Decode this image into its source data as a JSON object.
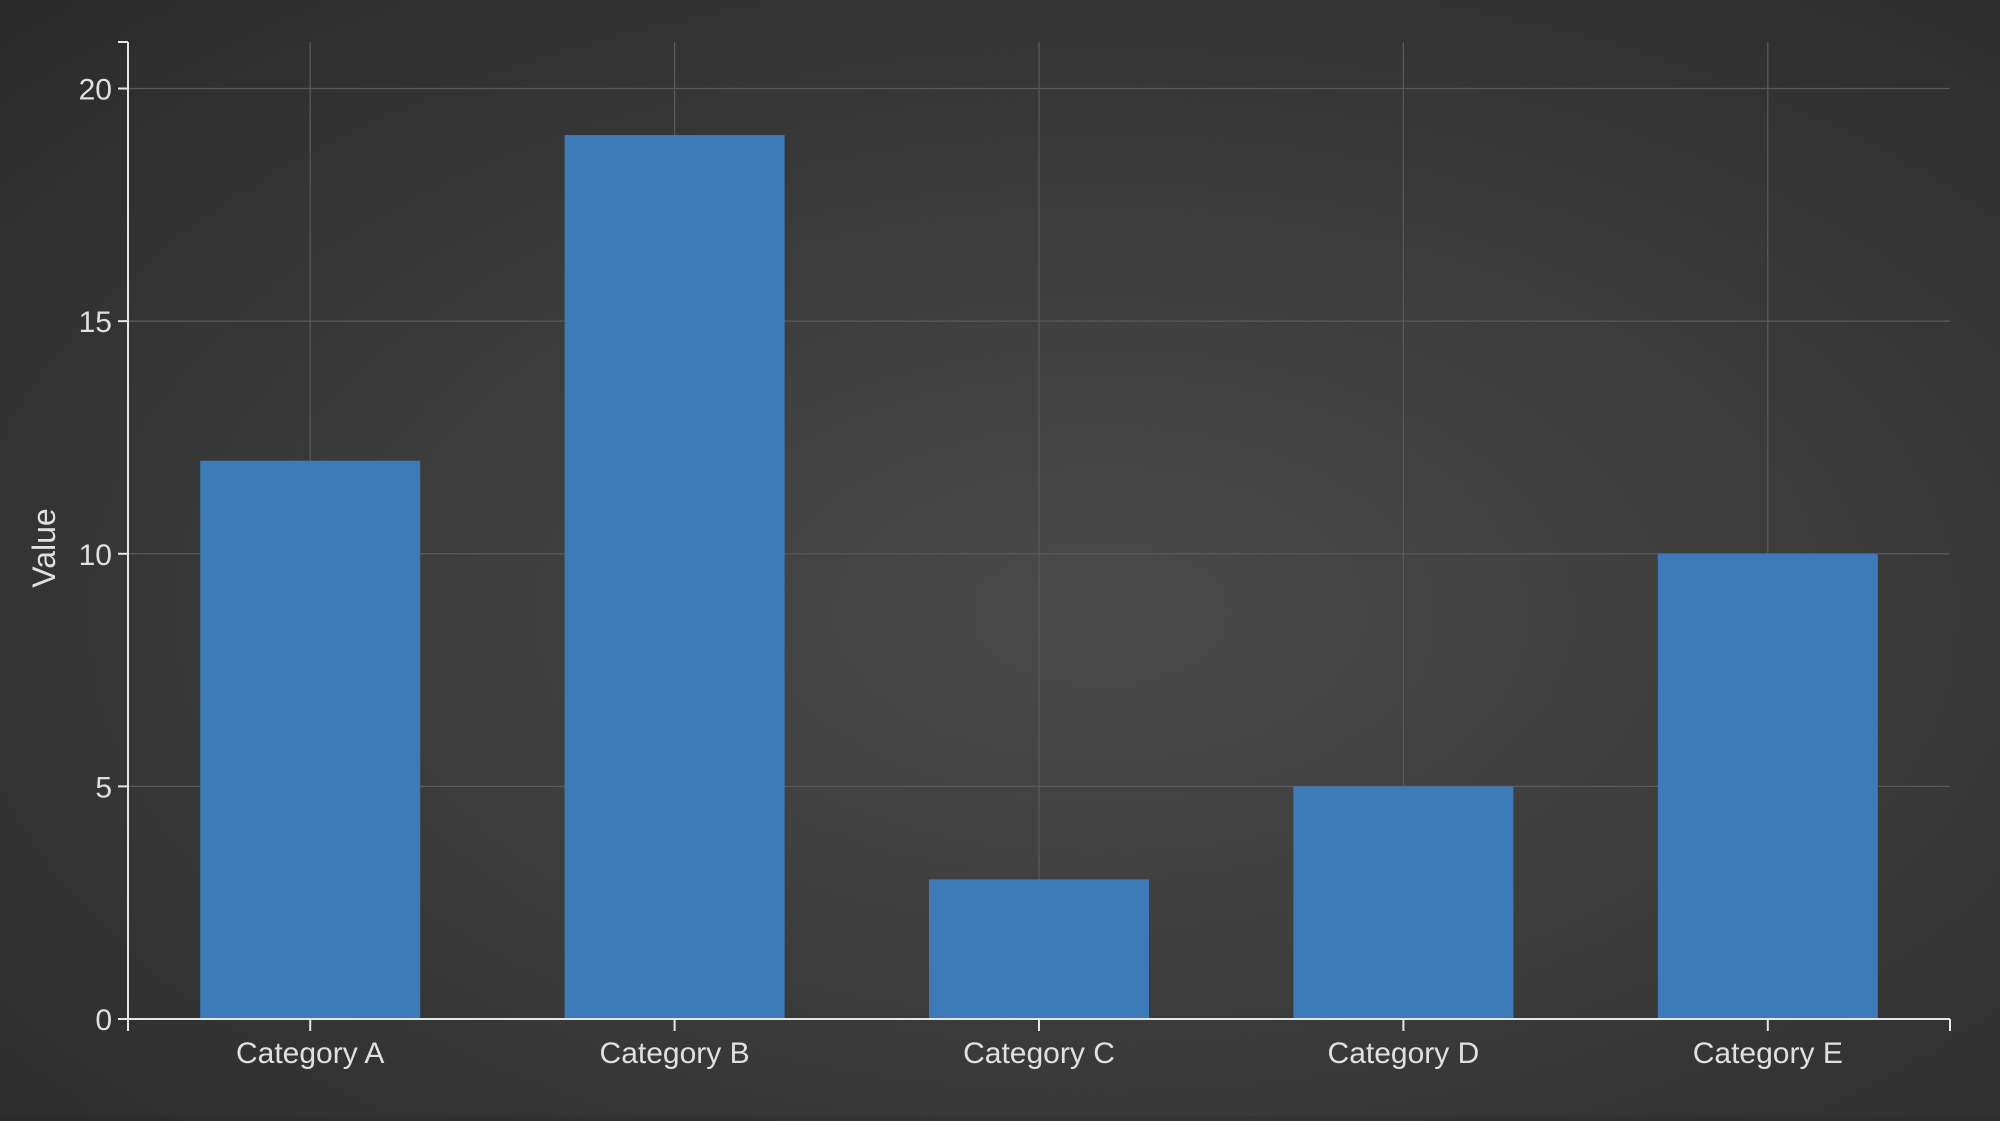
{
  "chart_data": {
    "type": "bar",
    "title": "",
    "xlabel": "",
    "ylabel": "Value",
    "categories": [
      "Category A",
      "Category B",
      "Category C",
      "Category D",
      "Category E"
    ],
    "values": [
      12,
      19,
      3,
      5,
      10
    ],
    "ylim": [
      0,
      21
    ],
    "yticks": [
      "0",
      "5",
      "10",
      "15",
      "20"
    ],
    "grid": true,
    "legend": "none",
    "colors": {
      "bar": "#3d7ab8",
      "axis": "#e6e6e6",
      "grid": "#5a5a5a",
      "text": "#e0e0e0"
    }
  }
}
